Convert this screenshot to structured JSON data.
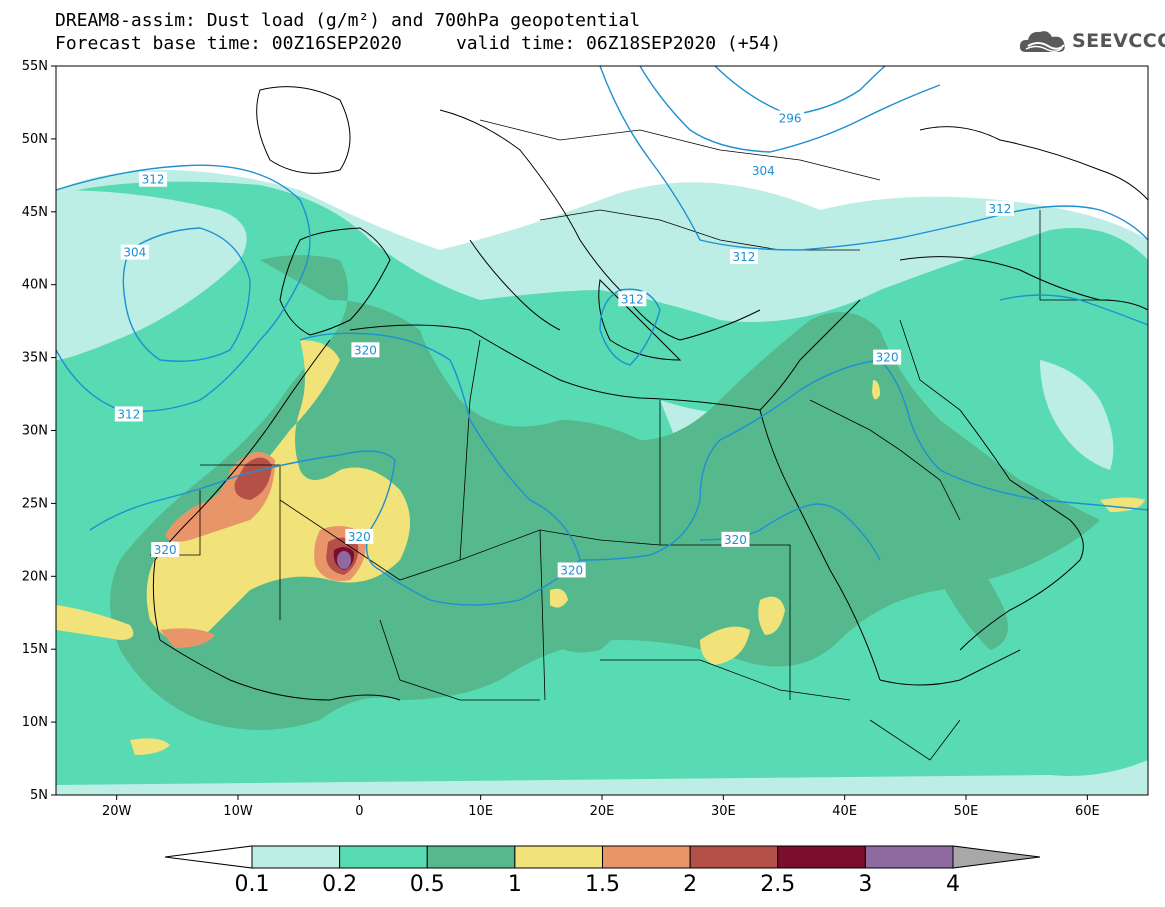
{
  "header": {
    "line1": "DREAM8-assim: Dust load (g/m²) and 700hPa geopotential",
    "line2": "Forecast base time: 00Z16SEP2020     valid time: 06Z18SEP2020 (+54)"
  },
  "logo": {
    "text": "SEEVCCC",
    "icon": "cloud-icon"
  },
  "axes": {
    "lat_labels": [
      "55N",
      "50N",
      "45N",
      "40N",
      "35N",
      "30N",
      "25N",
      "20N",
      "15N",
      "10N",
      "5N"
    ],
    "lon_labels": [
      "20W",
      "10W",
      "0",
      "10E",
      "20E",
      "30E",
      "40E",
      "50E",
      "60E"
    ],
    "lon_range": [
      -25,
      65
    ],
    "lat_range": [
      5,
      55
    ]
  },
  "colorbar": {
    "labels": [
      "0.1",
      "0.2",
      "0.5",
      "1",
      "1.5",
      "2",
      "2.5",
      "3",
      "4"
    ],
    "colors": [
      "#bdeee6",
      "#58dbb2",
      "#56b98e",
      "#f2e27a",
      "#e8956a",
      "#b55049",
      "#7b0e2d",
      "#8e6aa0"
    ],
    "low_color": "#ffffff",
    "high_color": "#a8a8a8"
  },
  "contours": {
    "color": "#1e90d2",
    "labels": [
      {
        "text": "312",
        "lon": -17,
        "lat": 47.2
      },
      {
        "text": "304",
        "lon": -18.5,
        "lat": 42.2
      },
      {
        "text": "312",
        "lon": -19,
        "lat": 31.1
      },
      {
        "text": "320",
        "lon": 0.5,
        "lat": 35.5
      },
      {
        "text": "320",
        "lon": -16,
        "lat": 21.8
      },
      {
        "text": "320",
        "lon": 0,
        "lat": 22.7
      },
      {
        "text": "320",
        "lon": 17.5,
        "lat": 20.4
      },
      {
        "text": "320",
        "lon": 31,
        "lat": 22.5
      },
      {
        "text": "320",
        "lon": 43.5,
        "lat": 35.0
      },
      {
        "text": "312",
        "lon": 22.5,
        "lat": 39.0
      },
      {
        "text": "312",
        "lon": 31.7,
        "lat": 41.9
      },
      {
        "text": "304",
        "lon": 33.3,
        "lat": 47.8
      },
      {
        "text": "296",
        "lon": 35.5,
        "lat": 51.4
      },
      {
        "text": "312",
        "lon": 52.8,
        "lat": 45.2
      }
    ]
  }
}
